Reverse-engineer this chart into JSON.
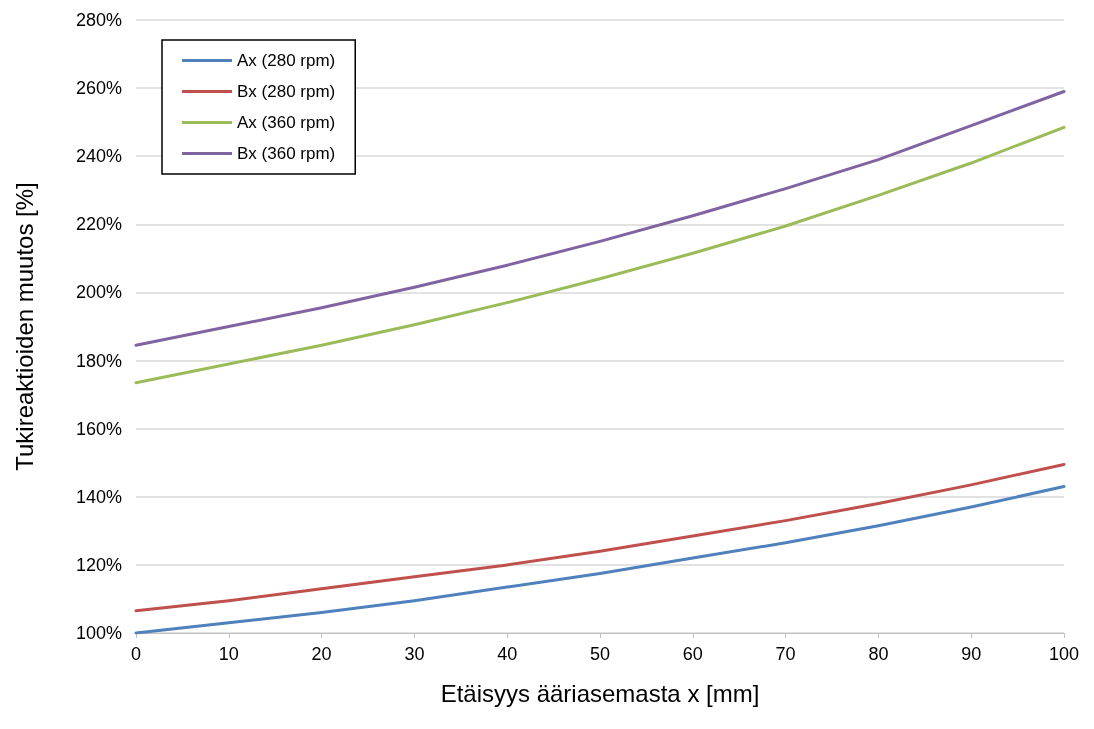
{
  "chart_data": {
    "type": "line",
    "xlabel": "Etäisyys ääriasemasta x [mm]",
    "ylabel": "Tukireaktioiden muutos [%]",
    "x": [
      0,
      10,
      20,
      30,
      40,
      50,
      60,
      70,
      80,
      90,
      100
    ],
    "series": [
      {
        "name": "Ax (280 rpm)",
        "color": "#4f81bd",
        "values": [
          100,
          103,
          106,
          109.5,
          113.5,
          117.5,
          122,
          126.5,
          131.5,
          137,
          143
        ]
      },
      {
        "name": "Bx (280 rpm)",
        "color": "#c0504d",
        "values": [
          106.5,
          109.5,
          113,
          116.5,
          120,
          124,
          128.5,
          133,
          138,
          143.5,
          149.5
        ]
      },
      {
        "name": "Ax (360 rpm)",
        "color": "#9bbb59",
        "values": [
          173.5,
          179,
          184.5,
          190.5,
          197,
          204,
          211.5,
          219.5,
          228.5,
          238,
          248.5
        ]
      },
      {
        "name": "Bx (360 rpm)",
        "color": "#8064a2",
        "values": [
          184.5,
          190,
          195.5,
          201.5,
          208,
          215,
          222.5,
          230.5,
          239,
          249,
          259
        ]
      }
    ],
    "xlim": [
      0,
      100
    ],
    "xticks": [
      0,
      10,
      20,
      30,
      40,
      50,
      60,
      70,
      80,
      90,
      100
    ],
    "ylim": [
      100,
      280
    ],
    "yticks": [
      {
        "value": 100,
        "label": "100%"
      },
      {
        "value": 120,
        "label": "120%"
      },
      {
        "value": 140,
        "label": "140%"
      },
      {
        "value": 160,
        "label": "160%"
      },
      {
        "value": 180,
        "label": "180%"
      },
      {
        "value": 200,
        "label": "200%"
      },
      {
        "value": 220,
        "label": "220%"
      },
      {
        "value": 240,
        "label": "240%"
      },
      {
        "value": 260,
        "label": "260%"
      },
      {
        "value": 280,
        "label": "280%"
      }
    ],
    "grid": "y",
    "legend": "top left",
    "marker": "none",
    "line_style": "solid"
  }
}
